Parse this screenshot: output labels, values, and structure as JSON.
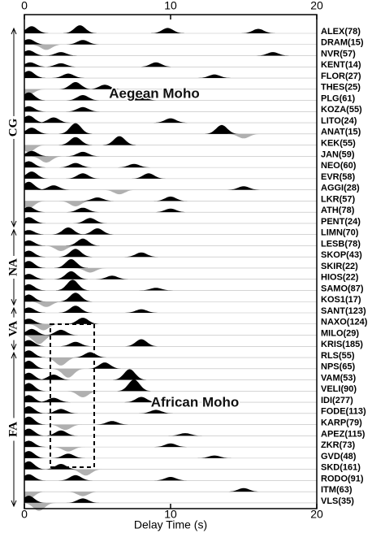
{
  "chart_data": {
    "type": "wiggle",
    "xlabel": "Delay Time (s)",
    "xlim": [
      0,
      20
    ],
    "xticks": [
      0,
      10,
      20
    ],
    "groups": [
      "CG",
      "NA",
      "VA",
      "FA"
    ],
    "annotations": [
      "Aegean Moho",
      "African Moho"
    ],
    "traces": [
      {
        "name": "ALEX(78)",
        "pulses": [
          [
            0.5,
            0.8
          ],
          [
            3.8,
            0.9
          ],
          [
            9.8,
            0.6
          ],
          [
            16,
            0.5
          ]
        ]
      },
      {
        "name": "DRAM(15)",
        "pulses": [
          [
            0.3,
            0.6
          ],
          [
            1.5,
            -0.6
          ],
          [
            4,
            0.5
          ]
        ]
      },
      {
        "name": "NVR(57)",
        "pulses": [
          [
            0.3,
            0.6
          ],
          [
            2.5,
            0.4
          ],
          [
            17,
            0.4
          ]
        ]
      },
      {
        "name": "KENT(14)",
        "pulses": [
          [
            0.4,
            0.5
          ],
          [
            2.5,
            0.4
          ],
          [
            9,
            0.5
          ]
        ]
      },
      {
        "name": "FLOR(27)",
        "pulses": [
          [
            0.3,
            0.8
          ],
          [
            3,
            0.5
          ],
          [
            13,
            0.4
          ]
        ]
      },
      {
        "name": "THES(25)",
        "pulses": [
          [
            0.3,
            -0.6
          ],
          [
            3.5,
            0.8
          ],
          [
            5.5,
            0.5
          ]
        ]
      },
      {
        "name": "PLG(61)",
        "pulses": [
          [
            0.3,
            0.9
          ],
          [
            4,
            0.6
          ],
          [
            8,
            0.4
          ]
        ]
      },
      {
        "name": "KOZA(55)",
        "pulses": [
          [
            0.3,
            0.6
          ],
          [
            4,
            0.5
          ]
        ]
      },
      {
        "name": "LITO(24)",
        "pulses": [
          [
            0.3,
            0.8
          ],
          [
            2,
            0.6
          ],
          [
            10,
            0.5
          ]
        ]
      },
      {
        "name": "ANAT(15)",
        "pulses": [
          [
            0.5,
            0.7
          ],
          [
            3.5,
            1.2
          ],
          [
            13.5,
            1.0
          ],
          [
            15,
            -0.5
          ]
        ]
      },
      {
        "name": "KEK(55)",
        "pulses": [
          [
            0.3,
            -0.8
          ],
          [
            3.5,
            0.9
          ],
          [
            6.5,
            1.0
          ]
        ]
      },
      {
        "name": "JAN(59)",
        "pulses": [
          [
            0.5,
            0.6
          ],
          [
            1.5,
            -0.7
          ],
          [
            4,
            0.5
          ]
        ]
      },
      {
        "name": "NEO(60)",
        "pulses": [
          [
            0.3,
            0.7
          ],
          [
            3.5,
            0.5
          ],
          [
            7.5,
            0.4
          ]
        ]
      },
      {
        "name": "EVR(58)",
        "pulses": [
          [
            0.5,
            0.8
          ],
          [
            4,
            0.6
          ],
          [
            8.5,
            0.6
          ]
        ]
      },
      {
        "name": "AGGI(28)",
        "pulses": [
          [
            0.3,
            0.9
          ],
          [
            2,
            0.5
          ],
          [
            6.5,
            -0.5
          ],
          [
            15,
            0.4
          ]
        ]
      },
      {
        "name": "LKR(57)",
        "pulses": [
          [
            0.3,
            -0.8
          ],
          [
            3.5,
            -0.6
          ],
          [
            5,
            0.4
          ],
          [
            10,
            0.5
          ]
        ]
      },
      {
        "name": "ATH(78)",
        "pulses": [
          [
            0.3,
            0.6
          ],
          [
            4,
            0.5
          ],
          [
            10,
            0.4
          ]
        ]
      },
      {
        "name": "PENT(24)",
        "pulses": [
          [
            0.3,
            0.7
          ],
          [
            4.5,
            0.6
          ]
        ]
      },
      {
        "name": "LIMN(70)",
        "pulses": [
          [
            0.3,
            0.5
          ],
          [
            3,
            0.8
          ],
          [
            5,
            0.7
          ]
        ]
      },
      {
        "name": "LESB(78)",
        "pulses": [
          [
            0.3,
            0.6
          ],
          [
            2.5,
            -0.6
          ],
          [
            4,
            0.8
          ]
        ]
      },
      {
        "name": "SKOP(43)",
        "pulses": [
          [
            0.3,
            0.7
          ],
          [
            3.5,
            0.9
          ],
          [
            8,
            0.5
          ]
        ]
      },
      {
        "name": "SKIR(22)",
        "pulses": [
          [
            0.3,
            0.8
          ],
          [
            3.2,
            1.0
          ],
          [
            4.5,
            -0.5
          ]
        ]
      },
      {
        "name": "HIOS(22)",
        "pulses": [
          [
            0.3,
            0.6
          ],
          [
            3.2,
            0.9
          ],
          [
            6,
            0.4
          ]
        ]
      },
      {
        "name": "SAMO(87)",
        "pulses": [
          [
            0.3,
            0.7
          ],
          [
            3.3,
            1.2
          ],
          [
            9,
            0.3
          ]
        ]
      },
      {
        "name": "KOS1(17)",
        "pulses": [
          [
            0.3,
            0.8
          ],
          [
            1.5,
            -0.6
          ],
          [
            3.5,
            1.0
          ]
        ]
      },
      {
        "name": "SANT(123)",
        "pulses": [
          [
            0.3,
            0.6
          ],
          [
            3.5,
            0.8
          ],
          [
            8,
            0.4
          ]
        ]
      },
      {
        "name": "NAXO(124)",
        "pulses": [
          [
            0.3,
            0.6
          ],
          [
            1.3,
            -0.7
          ],
          [
            4,
            0.7
          ]
        ]
      },
      {
        "name": "MILO(29)",
        "pulses": [
          [
            0.5,
            0.7
          ],
          [
            1,
            -1.0
          ],
          [
            2.5,
            0.6
          ]
        ]
      },
      {
        "name": "KRIS(185)",
        "pulses": [
          [
            0.3,
            0.7
          ],
          [
            3.5,
            0.5
          ],
          [
            8,
            0.8
          ]
        ]
      },
      {
        "name": "RLS(55)",
        "pulses": [
          [
            0.3,
            0.8
          ],
          [
            2.5,
            -0.9
          ],
          [
            4.5,
            0.6
          ]
        ]
      },
      {
        "name": "NPS(65)",
        "pulses": [
          [
            0.3,
            0.9
          ],
          [
            3,
            -1.0
          ],
          [
            5.5,
            0.7
          ]
        ]
      },
      {
        "name": "VAM(53)",
        "pulses": [
          [
            0.3,
            0.8
          ],
          [
            2,
            0.6
          ],
          [
            7.2,
            1.2
          ]
        ]
      },
      {
        "name": "VELI(90)",
        "pulses": [
          [
            0.3,
            0.9
          ],
          [
            4,
            -0.7
          ],
          [
            7.5,
            1.3
          ]
        ]
      },
      {
        "name": "IDI(277)",
        "pulses": [
          [
            0.3,
            0.8
          ],
          [
            2,
            0.5
          ],
          [
            8,
            0.6
          ]
        ]
      },
      {
        "name": "FODE(113)",
        "pulses": [
          [
            0.3,
            0.8
          ],
          [
            2.5,
            0.5
          ],
          [
            9,
            0.4
          ]
        ]
      },
      {
        "name": "KARP(79)",
        "pulses": [
          [
            0.3,
            0.9
          ],
          [
            2.8,
            -0.6
          ],
          [
            6,
            0.4
          ]
        ]
      },
      {
        "name": "APEZ(115)",
        "pulses": [
          [
            0.3,
            0.8
          ],
          [
            2.5,
            0.6
          ],
          [
            11,
            0.3
          ]
        ]
      },
      {
        "name": "ZKR(73)",
        "pulses": [
          [
            0.3,
            0.7
          ],
          [
            3,
            -0.5
          ],
          [
            10,
            0.4
          ]
        ]
      },
      {
        "name": "GVD(48)",
        "pulses": [
          [
            0.3,
            0.8
          ],
          [
            3,
            0.5
          ],
          [
            13,
            0.3
          ]
        ]
      },
      {
        "name": "SKD(161)",
        "pulses": [
          [
            0.3,
            0.9
          ],
          [
            2.5,
            0.6
          ],
          [
            4.2,
            -0.7
          ]
        ]
      },
      {
        "name": "RODO(91)",
        "pulses": [
          [
            0.3,
            0.7
          ],
          [
            3.5,
            0.6
          ],
          [
            10,
            0.4
          ]
        ]
      },
      {
        "name": "ITM(63)",
        "pulses": [
          [
            0.3,
            -0.8
          ],
          [
            4,
            -0.5
          ],
          [
            15,
            0.4
          ]
        ]
      },
      {
        "name": "VLS(35)",
        "pulses": [
          [
            0.3,
            0.8
          ],
          [
            1,
            -0.9
          ],
          [
            4,
            0.5
          ]
        ]
      }
    ]
  }
}
